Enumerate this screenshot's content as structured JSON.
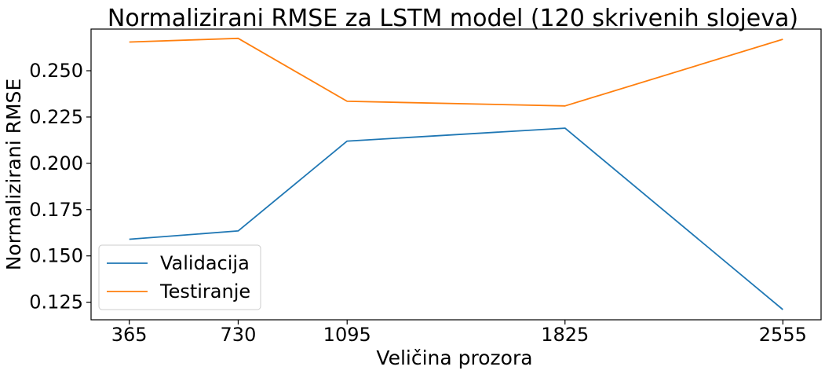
{
  "chart_data": {
    "type": "line",
    "title": "Normalizirani RMSE za LSTM model (120 skrivenih slojeva)",
    "xlabel": "Veličina prozora",
    "ylabel": "Normalizirani RMSE",
    "x": [
      365,
      730,
      1095,
      1825,
      2555
    ],
    "xticks": [
      "365",
      "730",
      "1095",
      "1825",
      "2555"
    ],
    "yticks": [
      "0.125",
      "0.150",
      "0.175",
      "0.200",
      "0.225",
      "0.250"
    ],
    "ytick_values": [
      0.125,
      0.15,
      0.175,
      0.2,
      0.225,
      0.25
    ],
    "xlim": [
      237,
      2683
    ],
    "ylim": [
      0.1155,
      0.2725
    ],
    "grid": false,
    "legend_position": "lower-left",
    "series": [
      {
        "name": "Validacija",
        "color": "#1f77b4",
        "values": [
          0.159,
          0.1635,
          0.212,
          0.219,
          0.121
        ]
      },
      {
        "name": "Testiranje",
        "color": "#ff7f0e",
        "values": [
          0.2655,
          0.2675,
          0.2335,
          0.231,
          0.267
        ]
      }
    ]
  }
}
